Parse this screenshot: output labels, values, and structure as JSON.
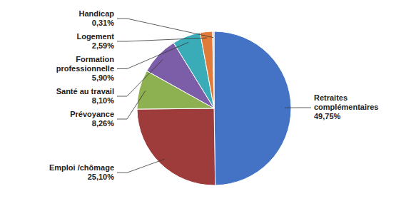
{
  "chart_data": {
    "type": "pie",
    "categories": [
      "Retraites\ncomplémentaires",
      "Emploi /chômage",
      "Prévoyance",
      "Santé au travail",
      "Formation\nprofessionnelle",
      "Logement",
      "Handicap"
    ],
    "values": [
      49.75,
      25.1,
      8.26,
      8.1,
      5.9,
      2.59,
      0.31
    ],
    "value_labels": [
      "49,75%",
      "25,10%",
      "8,26%",
      "8,10%",
      "5,90%",
      "2,59%",
      "0,31%"
    ],
    "colors": [
      "#4472C4",
      "#9E3B3B",
      "#8DB050",
      "#7B5EA7",
      "#3AACB8",
      "#E07B39",
      "#B8CDE4"
    ],
    "data_labels": true
  }
}
